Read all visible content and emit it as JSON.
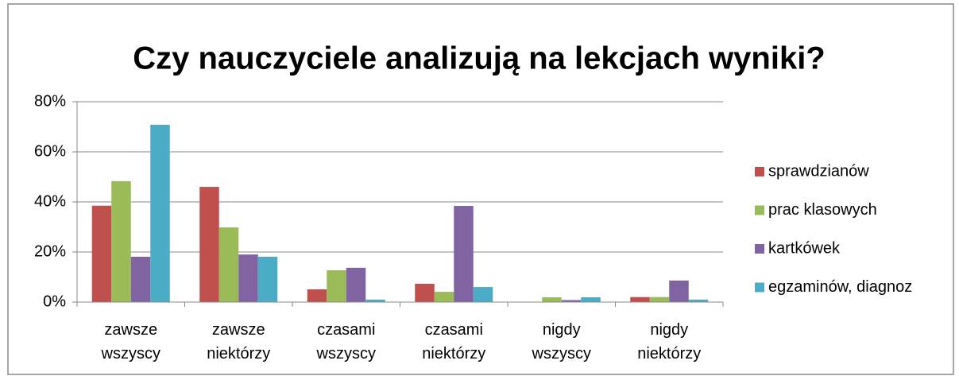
{
  "chart_data": {
    "type": "bar",
    "title": "Czy nauczyciele analizują na lekcjach wyniki?",
    "categories": [
      "zawsze wszyscy",
      "zawsze niektórzy",
      "czasami wszyscy",
      "czasami niektórzy",
      "nigdy wszyscy",
      "nigdy niektórzy"
    ],
    "series": [
      {
        "name": "sprawdzianów",
        "color": "#c0504d",
        "values": [
          38.5,
          46,
          5.1,
          7.3,
          0,
          2
        ]
      },
      {
        "name": "prac klasowych",
        "color": "#9bbb59",
        "values": [
          48.3,
          29.8,
          12.7,
          4.1,
          1.9,
          2
        ]
      },
      {
        "name": "kartkówek",
        "color": "#8064a2",
        "values": [
          18.1,
          19,
          13.7,
          38.4,
          0.8,
          8.6
        ]
      },
      {
        "name": "egzaminów, diagnoz",
        "color": "#4bacc6",
        "values": [
          70.8,
          18.1,
          1,
          6,
          1.9,
          1
        ]
      }
    ],
    "ylim": [
      0,
      80
    ],
    "yticks": [
      {
        "value": 0,
        "label": "0%"
      },
      {
        "value": 20,
        "label": "20%"
      },
      {
        "value": 40,
        "label": "40%"
      },
      {
        "value": 60,
        "label": "60%"
      },
      {
        "value": 80,
        "label": "80%"
      }
    ],
    "grid": true,
    "legend": "right"
  }
}
